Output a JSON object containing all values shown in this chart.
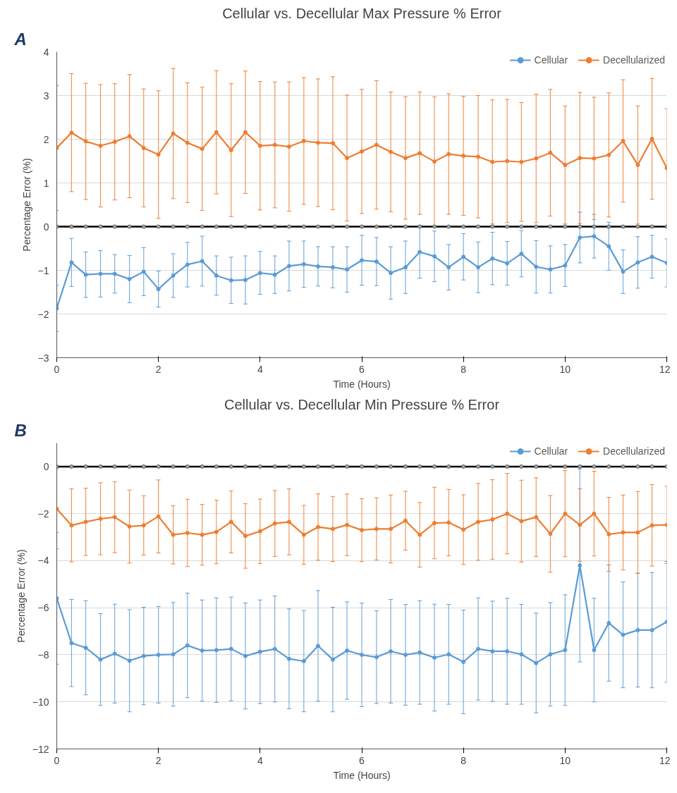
{
  "chart_data": [
    {
      "type": "line",
      "title": "Cellular vs. Decellular Max Pressure % Error",
      "xlabel": "Time (Hours)",
      "ylabel": "Percentage Error (%)",
      "annotations": [
        "A"
      ],
      "x": [
        0,
        0.29,
        0.57,
        0.86,
        1.14,
        1.43,
        1.71,
        2,
        2.29,
        2.57,
        2.86,
        3.14,
        3.43,
        3.71,
        4,
        4.29,
        4.57,
        4.86,
        5.14,
        5.43,
        5.71,
        6,
        6.29,
        6.57,
        6.86,
        7.14,
        7.43,
        7.71,
        8,
        8.29,
        8.57,
        8.86,
        9.14,
        9.43,
        9.71,
        10,
        10.29,
        10.57,
        10.86,
        11.14,
        11.43,
        11.71,
        12
      ],
      "xlim": [
        0,
        12
      ],
      "xticks": [
        0,
        2,
        4,
        6,
        8,
        10,
        12
      ],
      "ylim": [
        -3,
        4
      ],
      "yticks": [
        -3,
        -2,
        -1,
        0,
        1,
        2,
        3,
        4
      ],
      "grid": "y",
      "legend": "top right",
      "marker": "circle",
      "series": [
        {
          "name": "Cellular",
          "color": "#5b9bd5",
          "values": [
            -1.87,
            -0.82,
            -1.1,
            -1.08,
            -1.08,
            -1.2,
            -1.03,
            -1.43,
            -1.12,
            -0.87,
            -0.79,
            -1.12,
            -1.23,
            -1.22,
            -1.06,
            -1.1,
            -0.9,
            -0.86,
            -0.91,
            -0.93,
            -0.98,
            -0.77,
            -0.8,
            -1.06,
            -0.93,
            -0.58,
            -0.68,
            -0.93,
            -0.69,
            -0.93,
            -0.73,
            -0.84,
            -0.62,
            -0.92,
            -0.98,
            -0.89,
            -0.25,
            -0.22,
            -0.45,
            -1.03,
            -0.82,
            -0.69,
            -0.83
          ],
          "errors": [
            0.53,
            0.55,
            0.52,
            0.53,
            0.44,
            0.54,
            0.55,
            0.41,
            0.5,
            0.51,
            0.57,
            0.45,
            0.53,
            0.55,
            0.49,
            0.43,
            0.57,
            0.53,
            0.45,
            0.47,
            0.52,
            0.57,
            0.55,
            0.6,
            0.6,
            0.6,
            0.58,
            0.52,
            0.53,
            0.58,
            0.6,
            0.5,
            0.53,
            0.6,
            0.54,
            0.48,
            0.58,
            0.5,
            0.55,
            0.5,
            0.59,
            0.49,
            0.55
          ]
        },
        {
          "name": "Decellularized",
          "color": "#ed7d31",
          "values": [
            1.8,
            2.15,
            1.95,
            1.85,
            1.94,
            2.07,
            1.8,
            1.65,
            2.13,
            1.92,
            1.78,
            2.16,
            1.75,
            2.16,
            1.85,
            1.87,
            1.83,
            1.96,
            1.92,
            1.91,
            1.57,
            1.72,
            1.87,
            1.71,
            1.57,
            1.68,
            1.49,
            1.66,
            1.62,
            1.6,
            1.48,
            1.5,
            1.48,
            1.56,
            1.69,
            1.41,
            1.57,
            1.56,
            1.64,
            1.96,
            1.41,
            2.01,
            1.34
          ],
          "errors": [
            1.43,
            1.35,
            1.33,
            1.4,
            1.33,
            1.41,
            1.35,
            1.46,
            1.49,
            1.37,
            1.41,
            1.41,
            1.52,
            1.4,
            1.47,
            1.44,
            1.48,
            1.45,
            1.46,
            1.52,
            1.44,
            1.42,
            1.47,
            1.37,
            1.4,
            1.4,
            1.48,
            1.38,
            1.36,
            1.4,
            1.42,
            1.41,
            1.36,
            1.47,
            1.45,
            1.35,
            1.5,
            1.4,
            1.42,
            1.4,
            1.35,
            1.38,
            1.36
          ]
        },
        {
          "color": "#000000",
          "values": [
            0,
            0,
            0,
            0,
            0,
            0,
            0,
            0,
            0,
            0,
            0,
            0,
            0,
            0,
            0,
            0,
            0,
            0,
            0,
            0,
            0,
            0,
            0,
            0,
            0,
            0,
            0,
            0,
            0,
            0,
            0,
            0,
            0,
            0,
            0,
            0,
            0,
            0,
            0,
            0,
            0,
            0,
            0
          ]
        }
      ]
    },
    {
      "type": "line",
      "title": "Cellular vs. Decellular Min Pressure % Error",
      "xlabel": "Time (Hours)",
      "ylabel": "Percentage Error (%)",
      "annotations": [
        "B"
      ],
      "x": [
        0,
        0.29,
        0.57,
        0.86,
        1.14,
        1.43,
        1.71,
        2,
        2.29,
        2.57,
        2.86,
        3.14,
        3.43,
        3.71,
        4,
        4.29,
        4.57,
        4.86,
        5.14,
        5.43,
        5.71,
        6,
        6.29,
        6.57,
        6.86,
        7.14,
        7.43,
        7.71,
        8,
        8.29,
        8.57,
        8.86,
        9.14,
        9.43,
        9.71,
        10,
        10.29,
        10.57,
        10.86,
        11.14,
        11.43,
        11.71,
        12
      ],
      "xlim": [
        0,
        12
      ],
      "xticks": [
        0,
        2,
        4,
        6,
        8,
        10,
        12
      ],
      "ylim": [
        -12,
        1
      ],
      "yticks": [
        -12,
        -10,
        -8,
        -6,
        -4,
        -2,
        0
      ],
      "grid": "y",
      "legend": "top right",
      "marker": "circle",
      "series": [
        {
          "name": "Cellular",
          "color": "#5b9bd5",
          "values": [
            -5.6,
            -7.5,
            -7.7,
            -8.2,
            -7.95,
            -8.25,
            -8.05,
            -8.0,
            -7.98,
            -7.6,
            -7.82,
            -7.8,
            -7.75,
            -8.05,
            -7.87,
            -7.75,
            -8.17,
            -8.27,
            -7.62,
            -8.2,
            -7.82,
            -8.0,
            -8.1,
            -7.85,
            -8.0,
            -7.9,
            -8.12,
            -7.98,
            -8.3,
            -7.75,
            -7.85,
            -7.85,
            -7.98,
            -8.35,
            -7.98,
            -7.8,
            -4.2,
            -7.8,
            -6.65,
            -7.15,
            -6.95,
            -6.95,
            -6.6
          ],
          "errors": [
            2.8,
            1.85,
            2.0,
            1.95,
            2.1,
            2.17,
            2.07,
            2.05,
            2.2,
            2.22,
            2.15,
            2.22,
            2.2,
            2.25,
            2.2,
            2.25,
            2.12,
            2.15,
            2.35,
            2.22,
            2.07,
            2.2,
            1.97,
            2.2,
            2.14,
            2.2,
            2.27,
            2.12,
            2.2,
            2.17,
            2.13,
            2.25,
            2.12,
            2.12,
            2.2,
            2.35,
            4.1,
            2.2,
            2.47,
            2.25,
            2.42,
            2.45,
            2.57
          ]
        },
        {
          "name": "Decellularized",
          "color": "#ed7d31",
          "values": [
            -1.8,
            -2.5,
            -2.35,
            -2.22,
            -2.15,
            -2.55,
            -2.5,
            -2.12,
            -2.9,
            -2.82,
            -2.9,
            -2.78,
            -2.35,
            -2.95,
            -2.75,
            -2.42,
            -2.35,
            -2.9,
            -2.57,
            -2.65,
            -2.48,
            -2.7,
            -2.65,
            -2.65,
            -2.3,
            -2.9,
            -2.4,
            -2.38,
            -2.68,
            -2.35,
            -2.25,
            -2.0,
            -2.32,
            -2.15,
            -2.86,
            -2.0,
            -2.48,
            -2.0,
            -2.88,
            -2.8,
            -2.8,
            -2.5,
            -2.48
          ],
          "errors": [
            1.7,
            1.55,
            1.43,
            1.53,
            1.51,
            1.55,
            1.26,
            1.55,
            1.24,
            1.43,
            1.29,
            1.35,
            1.32,
            1.37,
            1.37,
            1.4,
            1.4,
            1.25,
            1.41,
            1.38,
            1.31,
            1.34,
            1.32,
            1.44,
            1.25,
            1.37,
            1.52,
            1.41,
            1.48,
            1.63,
            1.69,
            1.71,
            1.74,
            1.67,
            1.63,
            1.83,
            1.54,
            1.8,
            1.57,
            1.59,
            1.74,
            1.73,
            1.64
          ]
        },
        {
          "color": "#000000",
          "values": [
            0,
            0,
            0,
            0,
            0,
            0,
            0,
            0,
            0,
            0,
            0,
            0,
            0,
            0,
            0,
            0,
            0,
            0,
            0,
            0,
            0,
            0,
            0,
            0,
            0,
            0,
            0,
            0,
            0,
            0,
            0,
            0,
            0,
            0,
            0,
            0,
            0,
            0,
            0,
            0,
            0,
            0,
            0
          ]
        }
      ]
    }
  ]
}
